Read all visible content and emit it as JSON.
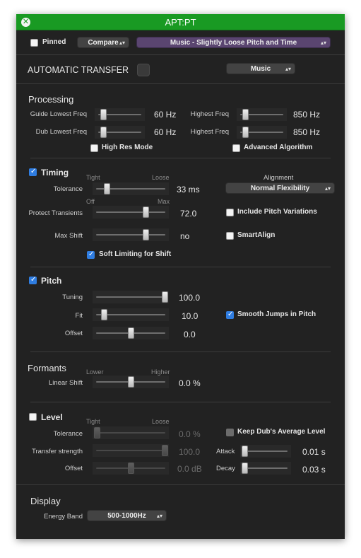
{
  "window": {
    "title": "APT:PT"
  },
  "toolbar": {
    "pinned_label": "Pinned",
    "compare_label": "Compare",
    "preset_label": "Music - Slightly Loose Pitch and Time"
  },
  "automatic_transfer": {
    "label": "AUTOMATIC TRANSFER",
    "mode": "Music"
  },
  "processing": {
    "header": "Processing",
    "guide_lowest_label": "Guide Lowest Freq",
    "guide_lowest_value": "60 Hz",
    "guide_lowest_level": 0.1,
    "dub_lowest_label": "Dub Lowest Freq",
    "dub_lowest_value": "60 Hz",
    "dub_lowest_level": 0.1,
    "guide_highest_label": "Highest Freq",
    "guide_highest_value": "850 Hz",
    "guide_highest_level": 0.1,
    "dub_highest_label": "Highest Freq",
    "dub_highest_value": "850 Hz",
    "dub_highest_level": 0.1,
    "high_res_label": "High Res Mode",
    "advanced_label": "Advanced Algorithm"
  },
  "timing": {
    "header": "Timing",
    "tolerance_label": "Tolerance",
    "tolerance_min": "Tight",
    "tolerance_max": "Loose",
    "tolerance_value": "33 ms",
    "tolerance_level": 0.15,
    "protect_label": "Protect Transients",
    "protect_min": "Off",
    "protect_max": "Max",
    "protect_value": "72.0",
    "protect_level": 0.72,
    "maxshift_label": "Max Shift",
    "maxshift_value": "no",
    "maxshift_level": 0.72,
    "soft_limit_label": "Soft Limiting for Shift",
    "alignment_label": "Alignment",
    "alignment_value": "Normal Flexibility",
    "include_pitch_label": "Include Pitch Variations",
    "smartalign_label": "SmartAlign"
  },
  "pitch": {
    "header": "Pitch",
    "tuning_label": "Tuning",
    "tuning_value": "100.0",
    "tuning_level": 1.0,
    "fit_label": "Fit",
    "fit_value": "10.0",
    "fit_level": 0.1,
    "offset_label": "Offset",
    "offset_value": "0.0",
    "offset_level": 0.5,
    "smooth_label": "Smooth Jumps in Pitch"
  },
  "formants": {
    "header": "Formants",
    "linear_label": "Linear Shift",
    "min": "Lower",
    "max": "Higher",
    "value": "0.0 %",
    "level": 0.5
  },
  "level": {
    "header": "Level",
    "tolerance_label": "Tolerance",
    "tolerance_min": "Tight",
    "tolerance_max": "Loose",
    "tolerance_value": "0.0 %",
    "tolerance_level": 0.0,
    "strength_label": "Transfer strength",
    "strength_value": "100.0",
    "strength_level": 1.0,
    "offset_label": "Offset",
    "offset_value": "0.0 dB",
    "offset_level": 0.5,
    "keep_label": "Keep Dub's Average Level",
    "attack_label": "Attack",
    "attack_value": "0.01 s",
    "attack_level": 0.0,
    "decay_label": "Decay",
    "decay_value": "0.03 s",
    "decay_level": 0.0
  },
  "display": {
    "header": "Display",
    "energy_label": "Energy Band",
    "energy_value": "500-1000Hz"
  },
  "colors": {
    "titlebar": "#199a23",
    "panel_bg": "#222222",
    "preset_purple": "#5a4570",
    "checkbox_blue": "#2f7de1"
  }
}
